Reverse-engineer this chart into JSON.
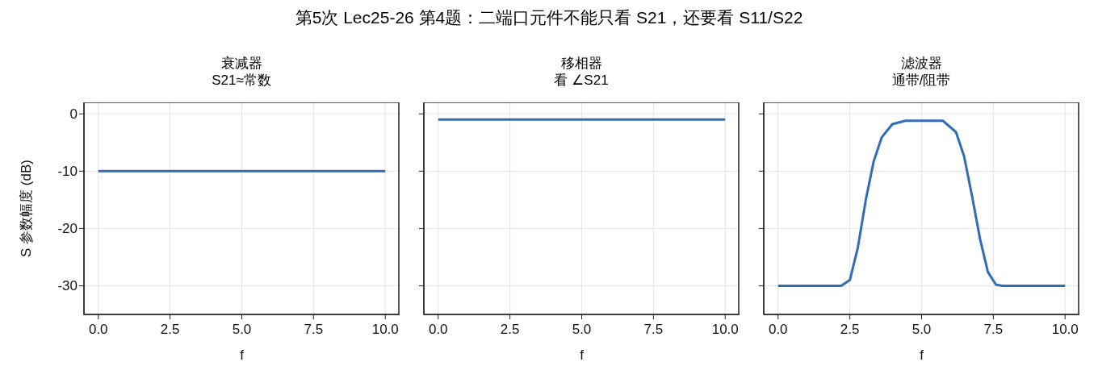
{
  "chart_data": [
    {
      "type": "line",
      "title": "衰减器",
      "subtitle": "S21≈常数",
      "annotations": [
        "第5次 Lec25-26 第4题：二端口元件不能只看 S21，还要看 S11/S22"
      ],
      "xlabel": "f",
      "ylabel": "S 参数幅度 (dB)",
      "series": [
        {
          "color": "#2f6db5",
          "x": [
            0,
            10
          ],
          "values": [
            -10,
            -10
          ]
        }
      ],
      "xlim": [
        -0.5,
        10.5
      ],
      "xticks": [
        {
          "value": 0,
          "label": "0.0"
        },
        {
          "value": 2.5,
          "label": "2.5"
        },
        {
          "value": 5,
          "label": "5.0"
        },
        {
          "value": 7.5,
          "label": "7.5"
        },
        {
          "value": 10,
          "label": "10.0"
        }
      ],
      "ylim": [
        -35,
        2
      ],
      "yticks": [
        -30,
        -20,
        -10,
        0
      ],
      "grid": true,
      "legend": false,
      "marker": "none",
      "line_style": "solid"
    },
    {
      "type": "line",
      "title": "移相器",
      "subtitle": "看 ∠S21",
      "xlabel": "f",
      "series": [
        {
          "color": "#2f6db5",
          "x": [
            0,
            10
          ],
          "values": [
            -1,
            -1
          ]
        }
      ],
      "xlim": [
        -0.5,
        10.5
      ],
      "xticks": [
        {
          "value": 0,
          "label": "0.0"
        },
        {
          "value": 2.5,
          "label": "2.5"
        },
        {
          "value": 5,
          "label": "5.0"
        },
        {
          "value": 7.5,
          "label": "7.5"
        },
        {
          "value": 10,
          "label": "10.0"
        }
      ],
      "ylim": [
        -35,
        2
      ],
      "yticks": [
        -30,
        -20,
        -10,
        0
      ],
      "tick_labels": "x",
      "grid": true,
      "legend": false,
      "marker": "none",
      "line_style": "solid"
    },
    {
      "type": "line",
      "title": "滤波器",
      "subtitle": "通带/阻带",
      "xlabel": "f",
      "series": [
        {
          "color": "#2f6db5",
          "x": [
            0,
            1,
            2,
            2.2,
            2.5,
            2.78,
            3.06,
            3.33,
            3.61,
            3.98,
            4.44,
            5,
            5.74,
            6.2,
            6.48,
            6.76,
            7.04,
            7.31,
            7.59,
            7.8,
            8.5,
            10
          ],
          "values": [
            -30,
            -30,
            -30,
            -30,
            -29,
            -23.3,
            -14.9,
            -8.3,
            -4.1,
            -1.8,
            -1.2,
            -1.2,
            -1.2,
            -3.2,
            -7.4,
            -14.4,
            -21.9,
            -27.6,
            -29.8,
            -30,
            -30,
            -30
          ]
        }
      ],
      "xlim": [
        -0.5,
        10.5
      ],
      "xticks": [
        {
          "value": 0,
          "label": "0.0"
        },
        {
          "value": 2.5,
          "label": "2.5"
        },
        {
          "value": 5,
          "label": "5.0"
        },
        {
          "value": 7.5,
          "label": "7.5"
        },
        {
          "value": 10,
          "label": "10.0"
        }
      ],
      "ylim": [
        -35,
        2
      ],
      "yticks": [
        -30,
        -20,
        -10,
        0
      ],
      "tick_labels": "x",
      "grid": true,
      "legend": false,
      "marker": "none",
      "line_style": "solid"
    }
  ]
}
